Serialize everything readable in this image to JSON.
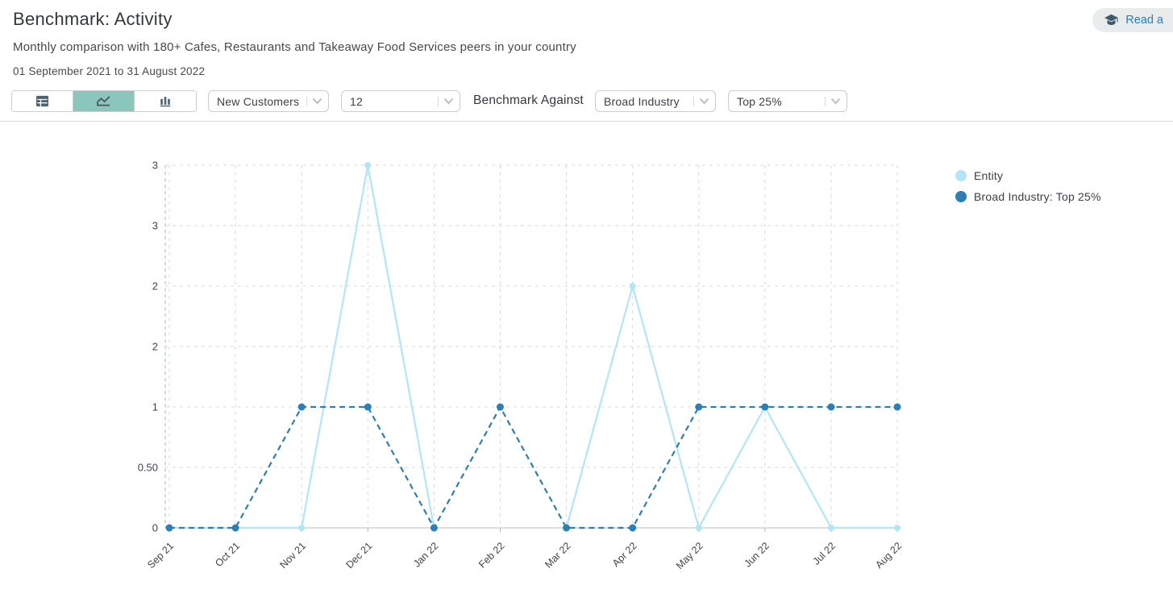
{
  "header": {
    "title": "Benchmark: Activity",
    "subtitle": "Monthly comparison with 180+ Cafes, Restaurants and Takeaway Food Services peers in your country",
    "date_range": "01 September 2021 to 31 August 2022",
    "read_button_label": "Read a"
  },
  "toolbar": {
    "view_toggle": [
      {
        "name": "table-view",
        "icon": "table-icon",
        "active": false
      },
      {
        "name": "line-chart-view",
        "icon": "line-chart-icon",
        "active": true
      },
      {
        "name": "bar-chart-view",
        "icon": "bar-chart-icon",
        "active": false
      }
    ],
    "metric_select_value": "New Customers",
    "months_select_value": "12",
    "benchmark_against_label": "Benchmark Against",
    "industry_select_value": "Broad Industry",
    "percentile_select_value": "Top 25%"
  },
  "chart_data": {
    "type": "line",
    "categories": [
      "Sep 21",
      "Oct 21",
      "Nov 21",
      "Dec 21",
      "Jan 22",
      "Feb 22",
      "Mar 22",
      "Apr 22",
      "May 22",
      "Jun 22",
      "Jul 22",
      "Aug 22"
    ],
    "series": [
      {
        "name": "Entity",
        "color": "#b2e6f7",
        "style": "solid",
        "values": [
          0,
          0,
          0,
          3,
          0,
          null,
          0,
          2,
          0,
          1,
          0,
          0
        ]
      },
      {
        "name": "Broad Industry: Top 25%",
        "color": "#2d7eb3",
        "style": "dashed",
        "values": [
          0,
          0,
          1,
          1,
          0,
          1,
          0,
          0,
          1,
          1,
          1,
          1
        ]
      }
    ],
    "y_tick_labels": [
      "3",
      "3",
      "2",
      "2",
      "1",
      "0.50",
      "0"
    ],
    "y_tick_values": [
      3,
      2.5,
      2,
      1.5,
      1,
      0.5,
      0
    ],
    "ylim": [
      0,
      3
    ],
    "grid": true,
    "legend_position": "right",
    "title": "",
    "xlabel": "",
    "ylabel": ""
  },
  "colors": {
    "accent_teal": "#8bc6bc",
    "link_blue": "#2e7cb5",
    "icon_slate": "#4e6372"
  }
}
